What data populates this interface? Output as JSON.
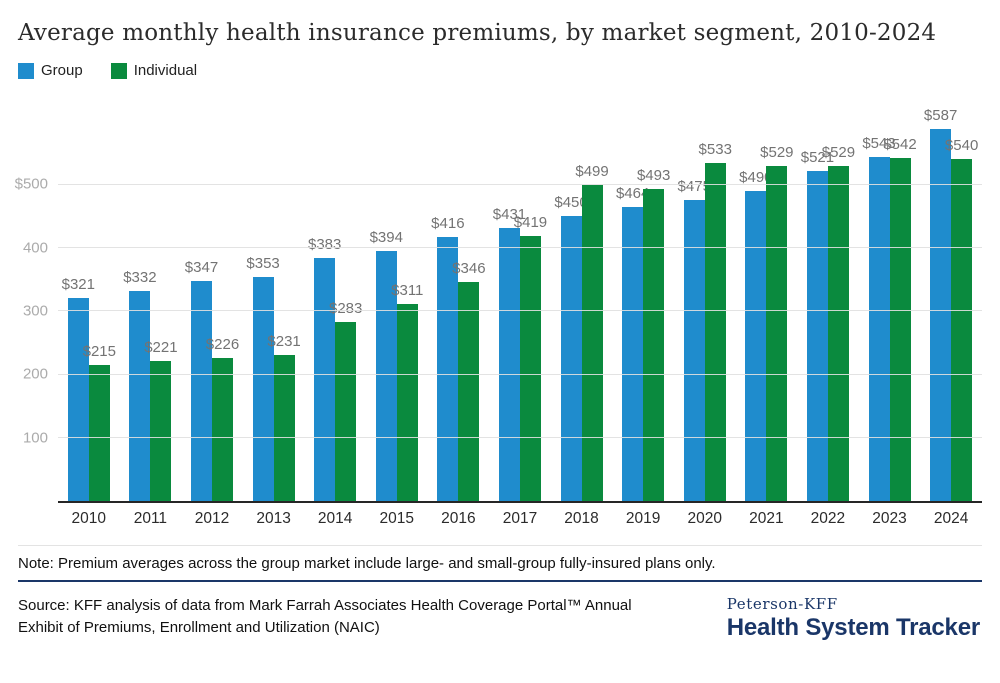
{
  "title": "Average monthly health insurance premiums, by market segment, 2010-2024",
  "legend": [
    {
      "label": "Group",
      "color": "#1f8ccd"
    },
    {
      "label": "Individual",
      "color": "#0a8a3e"
    }
  ],
  "chart_data": {
    "type": "bar",
    "title": "Average monthly health insurance premiums, by market segment, 2010-2024",
    "categories": [
      "2010",
      "2011",
      "2012",
      "2013",
      "2014",
      "2015",
      "2016",
      "2017",
      "2018",
      "2019",
      "2020",
      "2021",
      "2022",
      "2023",
      "2024"
    ],
    "series": [
      {
        "name": "Group",
        "color": "#1f8ccd",
        "values": [
          321,
          332,
          347,
          353,
          383,
          394,
          416,
          431,
          450,
          464,
          475,
          490,
          521,
          543,
          587
        ]
      },
      {
        "name": "Individual",
        "color": "#0a8a3e",
        "values": [
          215,
          221,
          226,
          231,
          283,
          311,
          346,
          419,
          499,
          493,
          533,
          529,
          529,
          542,
          540
        ]
      }
    ],
    "xlabel": "",
    "ylabel": "",
    "ylim": [
      0,
      636
    ],
    "y_ticks": [
      {
        "value": 100,
        "label": "100"
      },
      {
        "value": 200,
        "label": "200"
      },
      {
        "value": 300,
        "label": "300"
      },
      {
        "value": 400,
        "label": "400"
      },
      {
        "value": 500,
        "label": "$500"
      }
    ],
    "grid": "horizontal",
    "legend_position": "top-left",
    "value_prefix": "$"
  },
  "note": "Note: Premium averages across the group market include large- and small-group fully-insured plans only.",
  "source": "Source: KFF analysis of data from Mark Farrah Associates Health Coverage Portal™ Annual Exhibit of Premiums, Enrollment and Utilization (NAIC)",
  "logo": {
    "line1": "Peterson-KFF",
    "line2": "Health System Tracker"
  },
  "colors": {
    "group_bar": "#1f8ccd",
    "individual_bar": "#0a8a3e",
    "navy_brand": "#1a3668",
    "gridline": "#e0e0e0",
    "data_label": "#737373",
    "axis_tick_label": "#ababab"
  }
}
